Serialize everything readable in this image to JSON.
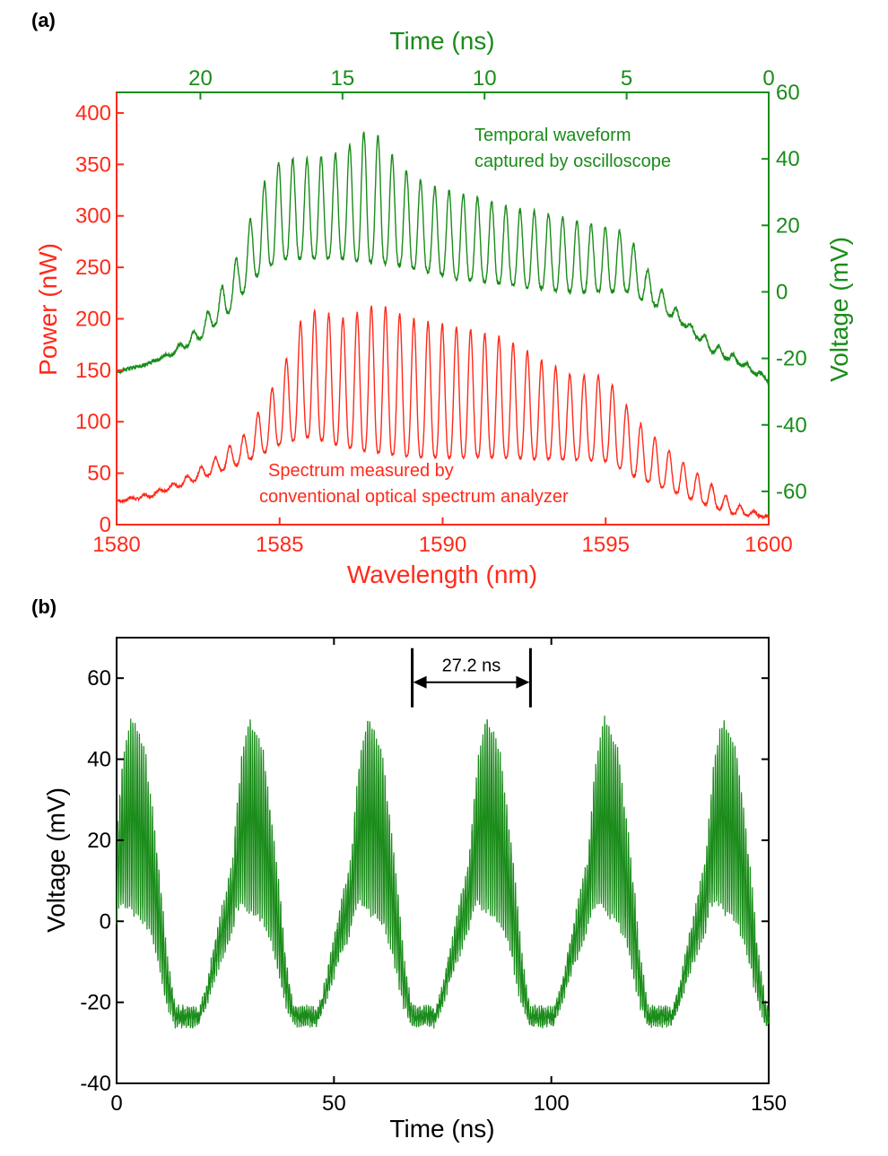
{
  "colors": {
    "red": "#ff2a1a",
    "green": "#1a8c1a",
    "black": "#000000"
  },
  "chart_data": [
    {
      "panel": "(a)",
      "type": "line",
      "xlabel": "Wavelength (nm)",
      "xlim": [
        1580,
        1600
      ],
      "x_ticks": [
        "1580",
        "1585",
        "1590",
        "1595",
        "1600"
      ],
      "ylabel": "Power (nW)",
      "ylim": [
        0,
        420
      ],
      "y_ticks": [
        "0",
        "50",
        "100",
        "150",
        "200",
        "250",
        "300",
        "350",
        "400"
      ],
      "top_xlabel": "Time (ns)",
      "top_xlim": [
        22.95,
        0
      ],
      "top_x_ticks": [
        "20",
        "15",
        "10",
        "5",
        "0"
      ],
      "right_ylabel": "Voltage (mV)",
      "right_ylim": [
        -70,
        60
      ],
      "right_y_ticks": [
        "-60",
        "-40",
        "-20",
        "0",
        "20",
        "40",
        "60"
      ],
      "grid": false,
      "annotations": [
        {
          "key": "spectrum_note",
          "lines": [
            "Spectrum measured by",
            "conventional optical spectrum analyzer"
          ],
          "color": "red"
        },
        {
          "key": "temporal_note",
          "lines": [
            "Temporal waveform",
            "captured by oscilloscope"
          ],
          "color": "green"
        }
      ],
      "series": [
        {
          "key": "spectrum",
          "axis": "left-bottom",
          "color": "red",
          "envelope_nm": [
            1580,
            1581,
            1582,
            1583,
            1584,
            1585,
            1585.8,
            1586.5,
            1587,
            1588,
            1589,
            1590,
            1591,
            1592,
            1593,
            1594,
            1595,
            1596,
            1597,
            1598,
            1599,
            1600
          ],
          "envelope_base_nW": [
            22,
            27,
            38,
            50,
            62,
            78,
            85,
            80,
            75,
            70,
            66,
            65,
            66,
            65,
            64,
            63,
            62,
            45,
            33,
            20,
            10,
            7
          ],
          "envelope_peak_nW": [
            24,
            30,
            44,
            65,
            90,
            145,
            210,
            205,
            200,
            215,
            200,
            195,
            188,
            180,
            160,
            145,
            145,
            100,
            70,
            45,
            20,
            8
          ],
          "fringe_period_nm": 0.435
        },
        {
          "key": "temporal",
          "axis": "right-top",
          "color": "green",
          "envelope_ns": [
            22.95,
            22,
            21,
            20,
            19.5,
            19,
            18.5,
            18,
            17.5,
            17,
            16,
            15,
            14,
            13,
            12,
            11,
            10,
            9,
            8,
            7,
            6,
            5,
            4,
            3,
            2,
            1,
            0
          ],
          "envelope_base_mV": [
            -24,
            -22,
            -19,
            -14,
            -10,
            -6,
            0,
            5,
            8,
            10,
            10,
            10,
            9,
            8,
            6,
            4,
            3,
            2,
            1,
            0,
            0,
            0,
            -4,
            -10,
            -18,
            -22,
            -27
          ],
          "envelope_peak_mV": [
            -24,
            -22,
            -18,
            -10,
            -2,
            5,
            15,
            28,
            38,
            40,
            40,
            42,
            50,
            38,
            32,
            30,
            28,
            25,
            24,
            22,
            20,
            18,
            3,
            -8,
            -15,
            -20,
            -26
          ],
          "fringe_period_ns": 0.5
        }
      ]
    },
    {
      "panel": "(b)",
      "type": "line",
      "xlabel": "Time (ns)",
      "xlim": [
        0,
        150
      ],
      "x_ticks": [
        "0",
        "50",
        "100",
        "150"
      ],
      "ylabel": "Voltage (mV)",
      "ylim": [
        -40,
        70
      ],
      "y_ticks": [
        "-40",
        "-20",
        "0",
        "20",
        "40",
        "60"
      ],
      "grid": false,
      "period_ns": 27.2,
      "period_annotation": {
        "label": "27.2 ns",
        "x_start": 68,
        "x_end": 95.2,
        "y": 59
      },
      "series": [
        {
          "key": "oscilloscope",
          "color": "green",
          "cycle_offset_ns": [
            -22,
            -20,
            -17,
            -14,
            -13,
            -12,
            -10,
            -7,
            -5,
            -3,
            -2,
            0
          ],
          "cycle_base_mV": [
            -25,
            -20,
            -10,
            -2,
            3,
            5,
            3,
            0,
            -5,
            -15,
            -20,
            -25
          ],
          "cycle_peak_mV": [
            -24,
            -16,
            0,
            15,
            28,
            40,
            50,
            42,
            25,
            5,
            -8,
            -22
          ],
          "peak_times_ns": [
            13.5,
            40.7,
            67.9,
            95.1,
            122.3,
            149.5
          ]
        }
      ]
    }
  ]
}
